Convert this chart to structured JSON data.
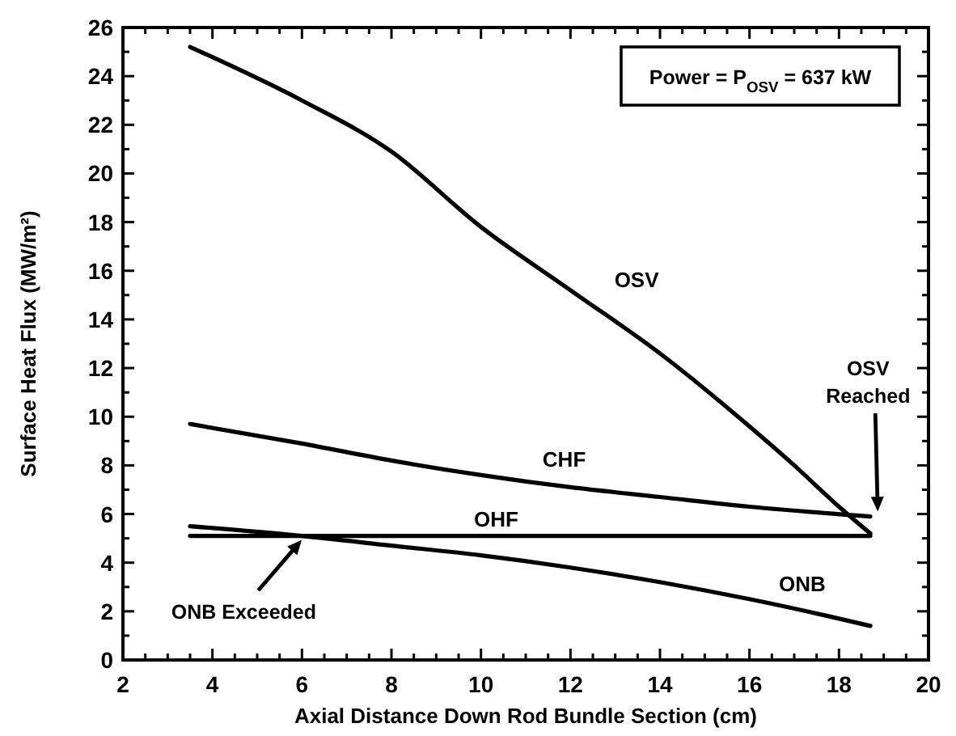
{
  "chart_data": {
    "type": "line",
    "xlabel": "Axial Distance Down Rod Bundle Section (cm)",
    "ylabel": "Surface Heat Flux (MW/m²)",
    "xlim": [
      2,
      20
    ],
    "ylim": [
      0,
      26
    ],
    "xticks": [
      2,
      {
        "value": 2.5,
        "label": null
      },
      {
        "value": 3,
        "label": null
      },
      {
        "value": 3.5,
        "label": null
      },
      4,
      {
        "value": 4.5,
        "label": null
      },
      {
        "value": 5,
        "label": null
      },
      {
        "value": 5.5,
        "label": null
      },
      6,
      {
        "value": 6.5,
        "label": null
      },
      {
        "value": 7,
        "label": null
      },
      {
        "value": 7.5,
        "label": null
      },
      8,
      {
        "value": 8.5,
        "label": null
      },
      {
        "value": 9,
        "label": null
      },
      {
        "value": 9.5,
        "label": null
      },
      10,
      {
        "value": 10.5,
        "label": null
      },
      {
        "value": 11,
        "label": null
      },
      {
        "value": 11.5,
        "label": null
      },
      12,
      {
        "value": 12.5,
        "label": null
      },
      {
        "value": 13,
        "label": null
      },
      {
        "value": 13.5,
        "label": null
      },
      14,
      {
        "value": 14.5,
        "label": null
      },
      {
        "value": 15,
        "label": null
      },
      {
        "value": 15.5,
        "label": null
      },
      16,
      {
        "value": 16.5,
        "label": null
      },
      {
        "value": 17,
        "label": null
      },
      {
        "value": 17.5,
        "label": null
      },
      18,
      {
        "value": 18.5,
        "label": null
      },
      {
        "value": 19,
        "label": null
      },
      {
        "value": 19.5,
        "label": null
      },
      20
    ],
    "yticks": [
      0,
      {
        "value": 1,
        "label": null
      },
      2,
      {
        "value": 3,
        "label": null
      },
      4,
      {
        "value": 5,
        "label": null
      },
      6,
      {
        "value": 7,
        "label": null
      },
      8,
      {
        "value": 9,
        "label": null
      },
      10,
      {
        "value": 11,
        "label": null
      },
      12,
      {
        "value": 13,
        "label": null
      },
      14,
      {
        "value": 15,
        "label": null
      },
      16,
      {
        "value": 17,
        "label": null
      },
      18,
      {
        "value": 19,
        "label": null
      },
      20,
      {
        "value": 21,
        "label": null
      },
      22,
      {
        "value": 23,
        "label": null
      },
      24,
      {
        "value": 25,
        "label": null
      },
      26
    ],
    "grid": false,
    "marker": "none",
    "line_style": "solid",
    "series": [
      {
        "name": "OSV",
        "color": "#000000",
        "x": [
          3.5,
          6,
          8,
          10,
          12,
          14,
          16,
          17,
          18,
          18.7
        ],
        "values": [
          25.2,
          23.0,
          20.9,
          17.8,
          15.2,
          12.6,
          9.6,
          8.0,
          6.3,
          5.2
        ]
      },
      {
        "name": "CHF",
        "color": "#000000",
        "x": [
          3.5,
          6,
          8,
          10,
          12,
          14,
          16,
          18.7
        ],
        "values": [
          9.7,
          8.9,
          8.2,
          7.6,
          7.1,
          6.7,
          6.3,
          5.9
        ]
      },
      {
        "name": "OHF",
        "color": "#000000",
        "x": [
          3.5,
          18.7
        ],
        "values": [
          5.1,
          5.1
        ]
      },
      {
        "name": "ONB",
        "color": "#000000",
        "x": [
          3.5,
          6,
          8,
          10,
          12,
          14,
          16,
          18,
          18.7
        ],
        "values": [
          5.5,
          5.1,
          4.7,
          4.3,
          3.8,
          3.2,
          2.5,
          1.7,
          1.4
        ]
      }
    ],
    "annotations": [
      "Power = P$_{OSV}$ = 637 kW",
      "OSV Reached",
      "ONB Exceeded"
    ]
  }
}
